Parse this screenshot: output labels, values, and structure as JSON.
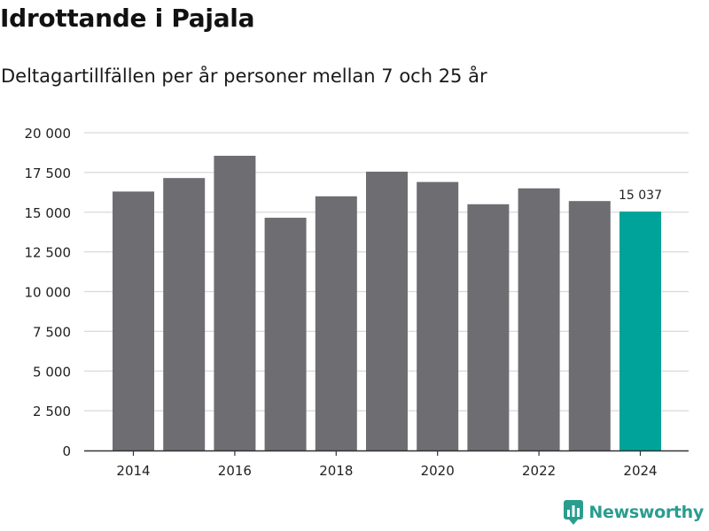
{
  "header": {
    "title": "Idrottande i Pajala",
    "subtitle": "Deltagartillfällen per år personer mellan 7 och 25 år"
  },
  "brand": {
    "name": "Newsworthy",
    "color": "#2a9d8f"
  },
  "colors": {
    "bar_default": "#6e6d72",
    "bar_highlight": "#00a39a",
    "grid": "#d9d9d9",
    "axis": "#333333"
  },
  "chart_data": {
    "type": "bar",
    "title": "Idrottande i Pajala",
    "subtitle": "Deltagartillfällen per år personer mellan 7 och 25 år",
    "xlabel": "",
    "ylabel": "",
    "categories": [
      "2014",
      "2015",
      "2016",
      "2017",
      "2018",
      "2019",
      "2020",
      "2021",
      "2022",
      "2023",
      "2024"
    ],
    "values": [
      16300,
      17150,
      18550,
      14650,
      16000,
      17550,
      16900,
      15500,
      16500,
      15700,
      15037
    ],
    "highlight_index": 10,
    "data_labels": [
      {
        "index": 10,
        "text": "15 037"
      }
    ],
    "x_tick_labels": [
      "2014",
      "2016",
      "2018",
      "2020",
      "2022",
      "2024"
    ],
    "y_tick_values": [
      0,
      2500,
      5000,
      7500,
      10000,
      12500,
      15000,
      17500,
      20000
    ],
    "y_tick_labels": [
      "0",
      "2 500",
      "5 000",
      "7 500",
      "10 000",
      "12 500",
      "15 000",
      "17 500",
      "20 000"
    ],
    "ylim": [
      0,
      20000
    ],
    "grid": true,
    "legend": "none"
  }
}
